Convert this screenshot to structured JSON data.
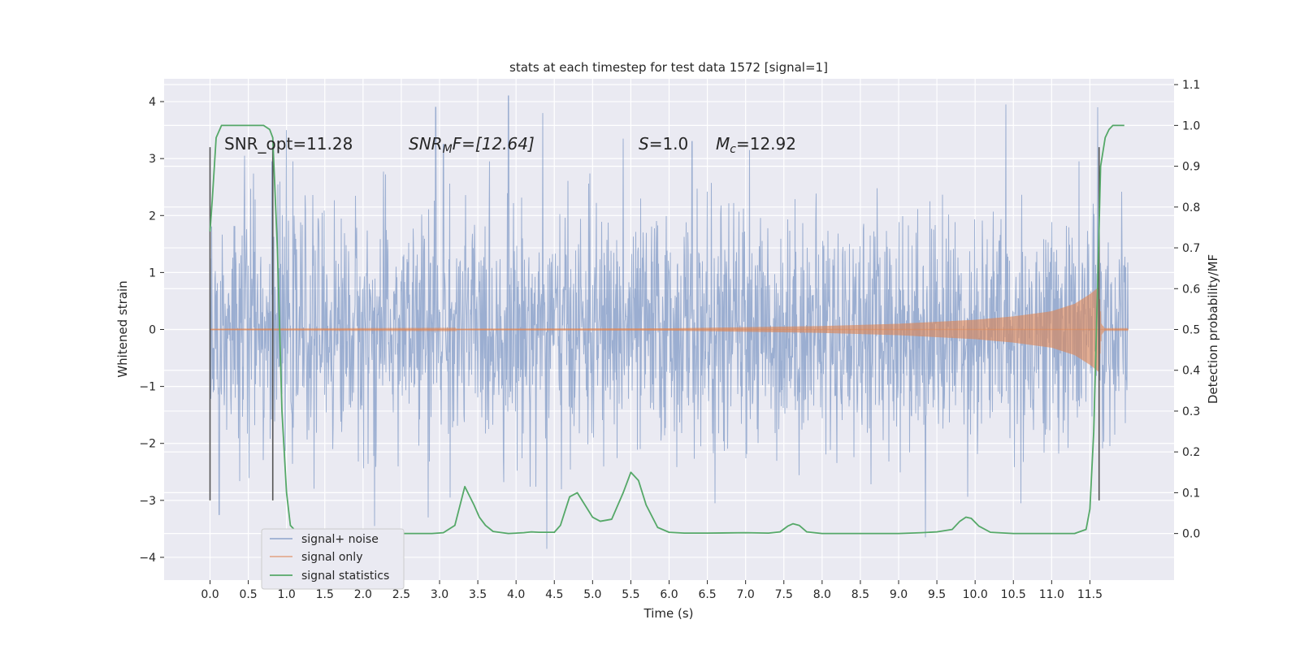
{
  "chart_data": {
    "type": "line",
    "title": "stats at each timestep for test data 1572 [signal=1]",
    "xlabel": "Time (s)",
    "ylabel": "Whitened strain",
    "y2label": "Detection probability/MF",
    "xlim": [
      -0.6,
      12.6
    ],
    "ylim": [
      -4.4,
      4.4
    ],
    "y2lim": [
      -0.1142,
      1.1142
    ],
    "xticks": [
      0.0,
      0.5,
      1.0,
      1.5,
      2.0,
      2.5,
      3.0,
      3.5,
      4.0,
      4.5,
      5.0,
      5.5,
      6.0,
      6.5,
      7.0,
      7.5,
      8.0,
      8.5,
      9.0,
      9.5,
      10.0,
      10.5,
      11.0,
      11.5
    ],
    "xtick_labels": [
      "0.0",
      "0.5",
      "1.0",
      "1.5",
      "2.0",
      "2.5",
      "3.0",
      "3.5",
      "4.0",
      "4.5",
      "5.0",
      "5.5",
      "6.0",
      "6.5",
      "7.0",
      "7.5",
      "8.0",
      "8.5",
      "9.0",
      "9.5",
      "10.0",
      "10.5",
      "11.0",
      "11.5"
    ],
    "yticks": [
      4,
      3,
      2,
      1,
      0,
      -1,
      -2,
      -3,
      -4
    ],
    "ytick_labels": [
      "4",
      "3",
      "2",
      "1",
      "0",
      "−1",
      "−2",
      "−3",
      "−4"
    ],
    "y2ticks": [
      1.1,
      1.0,
      0.9,
      0.8,
      0.7,
      0.6,
      0.5,
      0.4,
      0.3,
      0.2,
      0.1,
      0.0
    ],
    "y2tick_labels": [
      "1.1",
      "1.0",
      "0.9",
      "0.8",
      "0.7",
      "0.6",
      "0.5",
      "0.4",
      "0.3",
      "0.2",
      "0.1",
      "0.0"
    ],
    "grid": true,
    "legend_position": "lower-left",
    "annotations": {
      "snr_opt": "SNR_opt=11.28",
      "snr_mf_main": "SNR",
      "snr_mf_sub": "M",
      "snr_mf_rest": "F=[12.64]",
      "s_var": "S",
      "s_val": "=1.0",
      "mc_var": "M",
      "mc_sub": "c",
      "mc_val": "=12.92"
    },
    "series": [
      {
        "name": "signal+ noise",
        "color": "#4c72b0",
        "x_range": [
          0.0,
          12.0
        ],
        "rms_approx": 1.0,
        "notable_peaks": [
          [
            0.12,
            -3.25
          ],
          [
            0.45,
            3.05
          ],
          [
            1.0,
            3.5
          ],
          [
            2.15,
            -3.45
          ],
          [
            2.85,
            -3.3
          ],
          [
            2.95,
            3.9
          ],
          [
            3.05,
            3.25
          ],
          [
            3.9,
            4.1
          ],
          [
            4.35,
            3.8
          ],
          [
            4.4,
            -3.85
          ],
          [
            5.4,
            3.35
          ],
          [
            6.3,
            3.3
          ],
          [
            6.6,
            -3.05
          ],
          [
            7.05,
            3.15
          ],
          [
            9.35,
            -3.65
          ],
          [
            10.4,
            3.95
          ],
          [
            10.6,
            -3.05
          ],
          [
            11.6,
            3.9
          ]
        ]
      },
      {
        "name": "signal only",
        "color": "#dd8452",
        "envelope": [
          [
            0.0,
            0.005
          ],
          [
            6.0,
            0.02
          ],
          [
            8.0,
            0.06
          ],
          [
            9.0,
            0.1
          ],
          [
            10.0,
            0.17
          ],
          [
            10.5,
            0.23
          ],
          [
            11.0,
            0.32
          ],
          [
            11.3,
            0.45
          ],
          [
            11.5,
            0.62
          ],
          [
            11.62,
            0.75
          ],
          [
            11.65,
            0.1
          ],
          [
            11.7,
            0.01
          ],
          [
            12.0,
            0.01
          ]
        ]
      },
      {
        "name": "signal statistics",
        "color": "#55a868",
        "axis": "right",
        "x": [
          0.0,
          0.03,
          0.08,
          0.15,
          0.3,
          0.5,
          0.7,
          0.78,
          0.82,
          0.88,
          0.94,
          1.0,
          1.05,
          1.15,
          1.5,
          2.0,
          2.5,
          2.9,
          3.05,
          3.2,
          3.33,
          3.45,
          3.52,
          3.6,
          3.7,
          3.9,
          4.1,
          4.2,
          4.3,
          4.5,
          4.58,
          4.7,
          4.8,
          4.9,
          5.0,
          5.1,
          5.25,
          5.4,
          5.5,
          5.6,
          5.7,
          5.85,
          6.0,
          6.2,
          6.5,
          7.0,
          7.3,
          7.45,
          7.55,
          7.62,
          7.7,
          7.8,
          8.0,
          8.5,
          9.0,
          9.3,
          9.5,
          9.7,
          9.8,
          9.88,
          9.95,
          10.05,
          10.2,
          10.5,
          11.0,
          11.3,
          11.45,
          11.5,
          11.55,
          11.6,
          11.64,
          11.7,
          11.75,
          11.8,
          11.9,
          11.95
        ],
        "y": [
          0.74,
          0.82,
          0.97,
          1.0,
          1.0,
          1.0,
          1.0,
          0.99,
          0.97,
          0.7,
          0.3,
          0.1,
          0.02,
          0.0,
          0.0,
          0.0,
          0.0,
          0.0,
          0.002,
          0.02,
          0.115,
          0.07,
          0.04,
          0.02,
          0.005,
          0.0,
          0.002,
          0.004,
          0.003,
          0.003,
          0.02,
          0.09,
          0.1,
          0.07,
          0.04,
          0.03,
          0.035,
          0.1,
          0.15,
          0.13,
          0.07,
          0.015,
          0.003,
          0.001,
          0.001,
          0.002,
          0.001,
          0.004,
          0.018,
          0.024,
          0.02,
          0.004,
          0.0,
          0.0,
          0.0,
          0.002,
          0.004,
          0.01,
          0.03,
          0.04,
          0.037,
          0.018,
          0.003,
          0.0,
          0.0,
          0.0,
          0.01,
          0.06,
          0.25,
          0.6,
          0.9,
          0.97,
          0.99,
          1.0,
          1.0,
          1.0
        ]
      }
    ],
    "vertical_markers": [
      {
        "x": 0.0,
        "range": [
          -3.0,
          3.2
        ],
        "color": "#555555"
      },
      {
        "x": 0.82,
        "range": [
          -3.0,
          3.2
        ],
        "color": "#555555"
      },
      {
        "x": 11.62,
        "range": [
          -3.0,
          3.2
        ],
        "color": "#555555"
      }
    ],
    "horizontal_band": {
      "y_low": -0.05,
      "y_high": 0.03,
      "color": "#dd8452"
    }
  }
}
